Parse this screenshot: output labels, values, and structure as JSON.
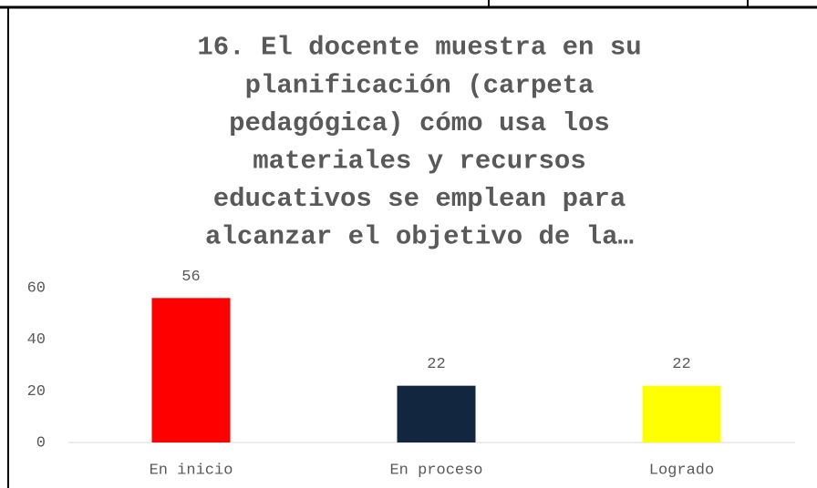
{
  "chart_data": {
    "type": "bar",
    "title": [
      "16. El docente muestra en su",
      "planificación (carpeta",
      "pedagógica) cómo usa los",
      "materiales y recursos",
      "educativos se emplean para",
      "alcanzar el objetivo de la…"
    ],
    "categories": [
      "En inicio",
      "En proceso",
      "Logrado"
    ],
    "values": [
      56,
      22,
      22
    ],
    "colors": [
      "#ff0000",
      "#12263f",
      "#ffff00"
    ],
    "ylim": [
      0,
      60
    ],
    "yticks": [
      0,
      20,
      40,
      60
    ],
    "grid": false
  }
}
